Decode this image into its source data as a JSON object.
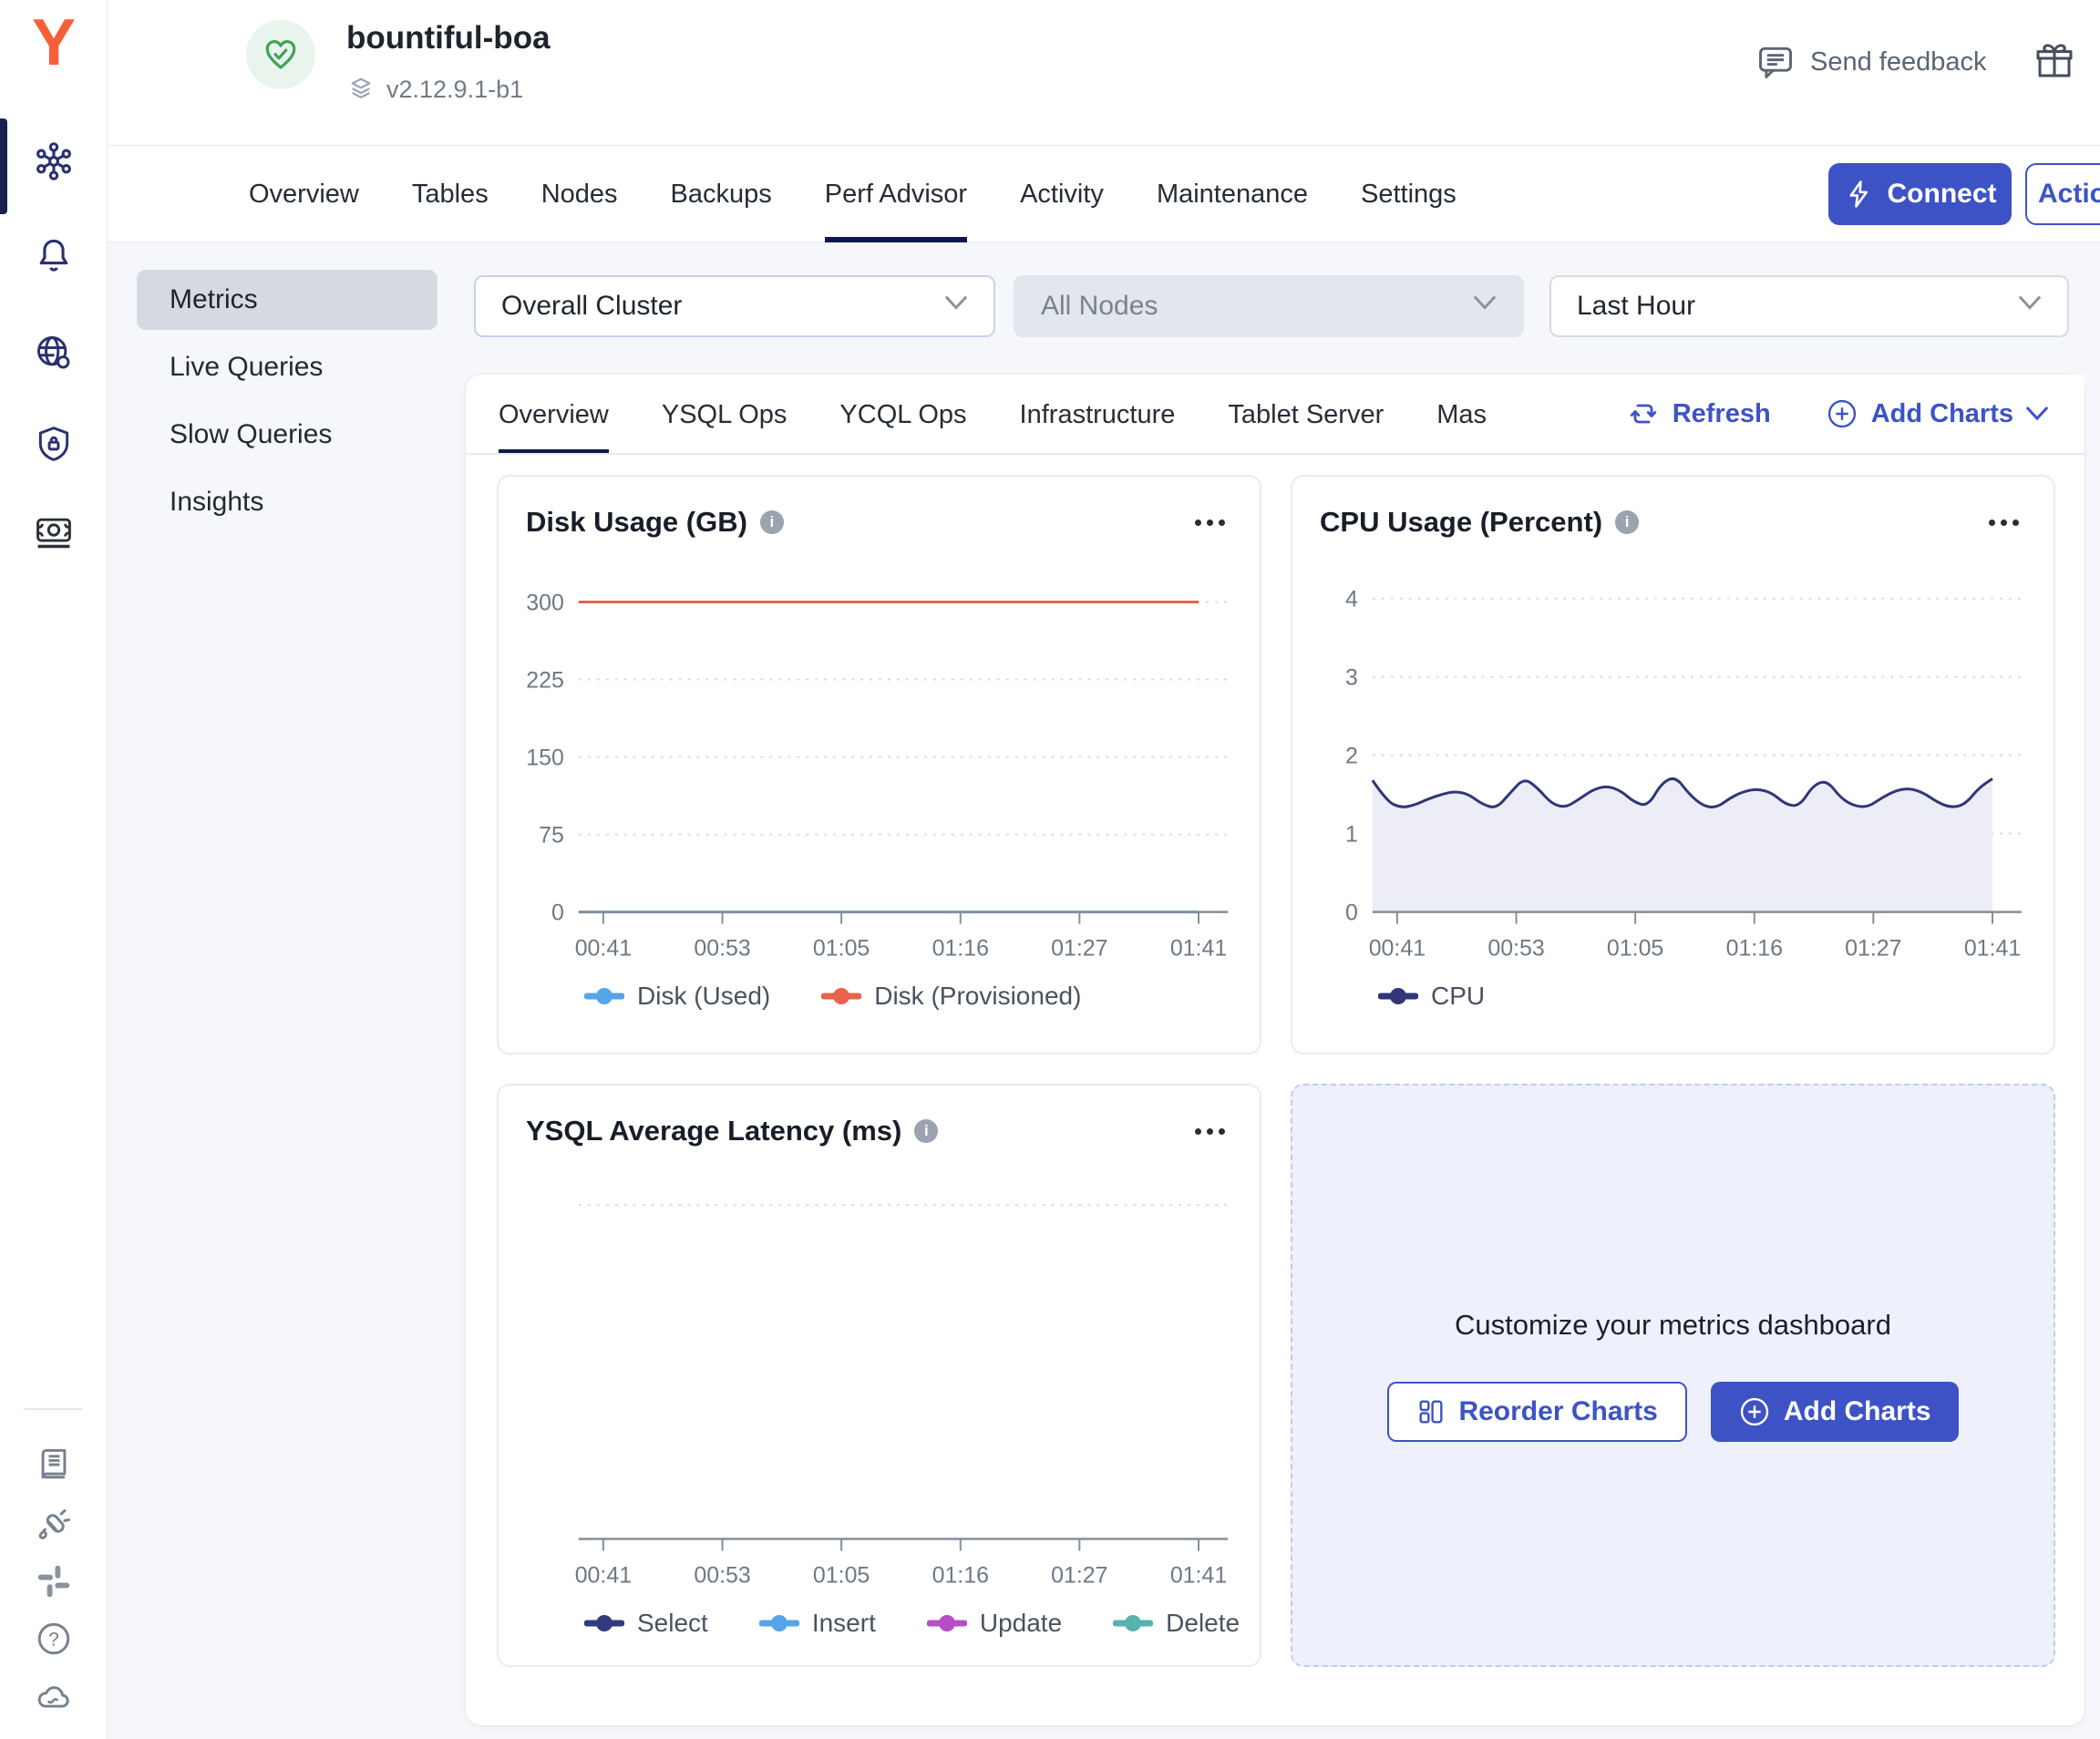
{
  "app": {
    "cluster_name": "bountiful-boa",
    "version": "v2.12.9.1-b1",
    "health_status": "healthy"
  },
  "header": {
    "send_feedback_label": "Send feedback"
  },
  "cluster_tabs": {
    "items": [
      "Overview",
      "Tables",
      "Nodes",
      "Backups",
      "Perf Advisor",
      "Activity",
      "Maintenance",
      "Settings"
    ],
    "active": "Perf Advisor",
    "connect_label": "Connect",
    "actions_label": "Actions"
  },
  "subnav": {
    "items": [
      "Metrics",
      "Live Queries",
      "Slow Queries",
      "Insights"
    ],
    "active": "Metrics",
    "collapse_glyph": "«"
  },
  "filters": {
    "cluster_scope": "Overall Cluster",
    "nodes": "All Nodes",
    "nodes_disabled": true,
    "time_range": "Last Hour"
  },
  "metrics_tabs": {
    "items": [
      "Overview",
      "YSQL Ops",
      "YCQL Ops",
      "Infrastructure",
      "Tablet Server",
      "Mas"
    ],
    "active": "Overview",
    "refresh_label": "Refresh",
    "add_charts_label": "Add Charts"
  },
  "customize_panel": {
    "title": "Customize your metrics dashboard",
    "reorder_label": "Reorder Charts",
    "add_label": "Add Charts"
  },
  "colors": {
    "primary_blue": "#3D53C5",
    "active_tab_navy": "#10184A",
    "brand_orange": "#F75F3B",
    "health_green": "#3FA456",
    "disk_used_blue": "#55A5E8",
    "disk_provisioned_orange": "#E8624C",
    "cpu_line_navy": "#303677",
    "select_navy": "#333A7D",
    "insert_blue": "#55A5E8",
    "update_purple": "#B44FC4",
    "delete_teal": "#56B2AE"
  },
  "chart_data": [
    {
      "id": "disk",
      "type": "line",
      "title": "Disk Usage (GB)",
      "ylim": [
        0,
        330
      ],
      "yticks": [
        0,
        75,
        150,
        225,
        300
      ],
      "xticks": [
        "00:41",
        "00:53",
        "01:05",
        "01:16",
        "01:27",
        "01:41"
      ],
      "grid": "dotted-horizontal",
      "legend_position": "bottom",
      "series": [
        {
          "name": "Disk (Used)",
          "color": "#55A5E8",
          "values": [
            0,
            0,
            0,
            0,
            0,
            0,
            0,
            0,
            0,
            0,
            0,
            0,
            0
          ]
        },
        {
          "name": "Disk (Provisioned)",
          "color": "#E8624C",
          "values": [
            300,
            300,
            300,
            300,
            300,
            300,
            300,
            300,
            300,
            300,
            300,
            300,
            300
          ]
        }
      ]
    },
    {
      "id": "cpu",
      "type": "area",
      "title": "CPU Usage (Percent)",
      "ylim": [
        0,
        4.35
      ],
      "yticks": [
        0,
        1,
        2,
        3,
        4
      ],
      "xticks": [
        "00:41",
        "00:53",
        "01:05",
        "01:16",
        "01:27",
        "01:41"
      ],
      "grid": "dotted-horizontal",
      "legend_position": "bottom",
      "series": [
        {
          "name": "CPU",
          "color": "#303677",
          "fill": "#ECEDF6",
          "values": [
            1.68,
            1.42,
            1.33,
            1.36,
            1.44,
            1.5,
            1.54,
            1.5,
            1.37,
            1.32,
            1.52,
            1.71,
            1.58,
            1.38,
            1.33,
            1.44,
            1.56,
            1.61,
            1.55,
            1.4,
            1.35,
            1.65,
            1.73,
            1.5,
            1.35,
            1.33,
            1.46,
            1.54,
            1.57,
            1.52,
            1.37,
            1.35,
            1.62,
            1.68,
            1.45,
            1.35,
            1.34,
            1.46,
            1.55,
            1.58,
            1.52,
            1.4,
            1.33,
            1.37,
            1.58,
            1.7
          ]
        }
      ]
    },
    {
      "id": "ysql",
      "type": "line",
      "title": "YSQL Average Latency (ms)",
      "ylim": [
        0,
        1
      ],
      "yticks": [],
      "top_gridline_frac": 0.93,
      "xticks": [
        "00:41",
        "00:53",
        "01:05",
        "01:16",
        "01:27",
        "01:41"
      ],
      "grid": "dotted-horizontal",
      "legend_position": "bottom",
      "series": [
        {
          "name": "Select",
          "color": "#333A7D",
          "values": []
        },
        {
          "name": "Insert",
          "color": "#55A5E8",
          "values": []
        },
        {
          "name": "Update",
          "color": "#B44FC4",
          "values": []
        },
        {
          "name": "Delete",
          "color": "#56B2AE",
          "values": []
        }
      ]
    }
  ]
}
